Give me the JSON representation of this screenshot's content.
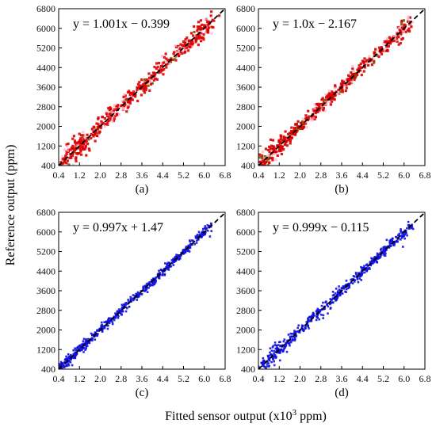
{
  "figure": {
    "xlabel_main": "Fitted sensor output (x10",
    "xlabel_sup": "3",
    "xlabel_tail": " ppm)",
    "ylabel": "Reference output (ppm)"
  },
  "chart_data": [
    {
      "type": "scatter",
      "panel_label": "(a)",
      "equation": "y = 1.001x − 0.399",
      "slope": 1.001,
      "intercept": -0.399,
      "point_color": "#e00000",
      "accent_color": "#ffb0c8",
      "secondary_color": "#7a5a00",
      "fit_line": "dashed black",
      "xlim": [
        400,
        6800
      ],
      "ylim": [
        400,
        6800
      ],
      "xticks": [
        "0.4",
        "1.2",
        "2.0",
        "2.8",
        "3.6",
        "4.4",
        "5.2",
        "6.0",
        "6.8"
      ],
      "yticks": [
        "400",
        "1200",
        "2000",
        "2800",
        "3600",
        "4400",
        "5200",
        "6000",
        "6800"
      ],
      "x_range": [
        600,
        6300
      ],
      "scatter_sd": 160
    },
    {
      "type": "scatter",
      "panel_label": "(b)",
      "equation": "y = 1.0x − 2.167",
      "slope": 1.0,
      "intercept": -2.167,
      "point_color": "#d80000",
      "accent_color": "#ffb0c8",
      "secondary_color": "#7a5a00",
      "fit_line": "dashed black",
      "xlim": [
        400,
        6800
      ],
      "ylim": [
        400,
        6800
      ],
      "xticks": [
        "0.4",
        "1.2",
        "2.0",
        "2.8",
        "3.6",
        "4.4",
        "5.2",
        "6.0",
        "6.8"
      ],
      "yticks": [
        "400",
        "1200",
        "2000",
        "2800",
        "3600",
        "4400",
        "5200",
        "6000",
        "6800"
      ],
      "x_range": [
        500,
        6300
      ],
      "scatter_sd": 120
    },
    {
      "type": "scatter",
      "panel_label": "(c)",
      "equation": "y = 0.997x + 1.47",
      "slope": 0.997,
      "intercept": 1.47,
      "point_color": "#1010e0",
      "accent_color": "#1010e0",
      "secondary_color": "#1010e0",
      "fit_line": "dashed black",
      "xlim": [
        400,
        6800
      ],
      "ylim": [
        400,
        6800
      ],
      "xticks": [
        "0.4",
        "1.2",
        "2.0",
        "2.8",
        "3.6",
        "4.4",
        "5.2",
        "6.0",
        "6.8"
      ],
      "yticks": [
        "400",
        "1200",
        "2000",
        "2800",
        "3600",
        "4400",
        "5200",
        "6000",
        "6800"
      ],
      "x_range": [
        450,
        6300
      ],
      "scatter_sd": 80
    },
    {
      "type": "scatter",
      "panel_label": "(d)",
      "equation": "y = 0.999x − 0.115",
      "slope": 0.999,
      "intercept": -0.115,
      "point_color": "#1010e0",
      "accent_color": "#1010e0",
      "secondary_color": "#1010e0",
      "fit_line": "dashed black",
      "xlim": [
        400,
        6800
      ],
      "ylim": [
        400,
        6800
      ],
      "xticks": [
        "0.4",
        "1.2",
        "2.0",
        "2.8",
        "3.6",
        "4.4",
        "5.2",
        "6.0",
        "6.8"
      ],
      "yticks": [
        "400",
        "1200",
        "2000",
        "2800",
        "3600",
        "4400",
        "5200",
        "6000",
        "6800"
      ],
      "x_range": [
        450,
        6300
      ],
      "scatter_sd": 110
    }
  ]
}
